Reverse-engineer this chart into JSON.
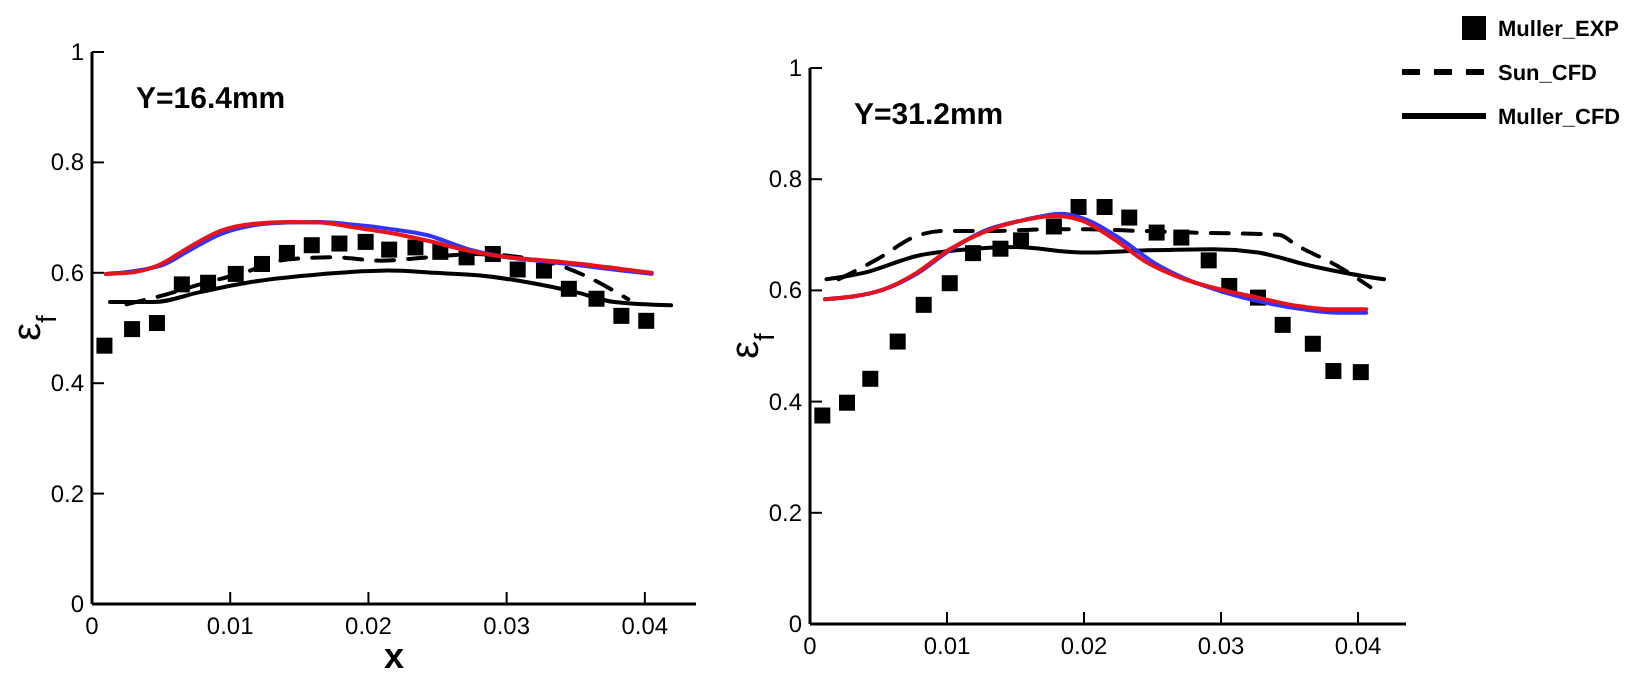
{
  "chart_data": [
    {
      "type": "line",
      "title": "Y=16.4mm",
      "xlabel": "x",
      "ylabel": "ε$_{f}$",
      "xlim": [
        0,
        0.0437
      ],
      "ylim": [
        0,
        1
      ],
      "xticks": [
        0,
        0.01,
        0.02,
        0.03,
        0.04
      ],
      "yticks": [
        0,
        0.2,
        0.4,
        0.6,
        0.8,
        1
      ],
      "grid": false,
      "legend": false,
      "series": [
        {
          "type": "scatter",
          "marker": "square",
          "color": "#000000",
          "x": [
            0.0009,
            0.0029,
            0.0047,
            0.0065,
            0.0084,
            0.0104,
            0.0123,
            0.0141,
            0.0159,
            0.0179,
            0.0198,
            0.0215,
            0.0234,
            0.0252,
            0.0271,
            0.029,
            0.0308,
            0.0327,
            0.0345,
            0.0365,
            0.0383,
            0.0401
          ],
          "values": [
            0.468,
            0.498,
            0.509,
            0.579,
            0.582,
            0.598,
            0.616,
            0.636,
            0.65,
            0.653,
            0.656,
            0.642,
            0.646,
            0.638,
            0.628,
            0.634,
            0.606,
            0.604,
            0.571,
            0.553,
            0.522,
            0.513
          ]
        },
        {
          "line_style": "dashed",
          "color": "#000000",
          "x": [
            0.0025,
            0.0054,
            0.0078,
            0.0107,
            0.0141,
            0.0175,
            0.0209,
            0.0243,
            0.0277,
            0.031,
            0.034,
            0.0359,
            0.0388
          ],
          "values": [
            0.543,
            0.561,
            0.579,
            0.598,
            0.624,
            0.628,
            0.622,
            0.628,
            0.634,
            0.628,
            0.612,
            0.592,
            0.552
          ]
        },
        {
          "line_style": "solid",
          "color": "#000000",
          "x": [
            0.0013,
            0.0045,
            0.0078,
            0.0112,
            0.0151,
            0.0185,
            0.0214,
            0.0248,
            0.0281,
            0.0315,
            0.035,
            0.0378,
            0.0419
          ],
          "values": [
            0.547,
            0.547,
            0.565,
            0.582,
            0.594,
            0.601,
            0.604,
            0.6,
            0.595,
            0.583,
            0.565,
            0.547,
            0.541
          ]
        },
        {
          "line_style": "solid",
          "color": "#3333ff",
          "x": [
            0.001,
            0.005,
            0.007,
            0.0093,
            0.0117,
            0.0141,
            0.0165,
            0.019,
            0.0214,
            0.0243,
            0.0272,
            0.0301,
            0.033,
            0.0354,
            0.0383,
            0.0405
          ],
          "values": [
            0.598,
            0.613,
            0.64,
            0.67,
            0.686,
            0.691,
            0.692,
            0.687,
            0.68,
            0.668,
            0.643,
            0.628,
            0.62,
            0.613,
            0.604,
            0.598
          ]
        },
        {
          "line_style": "solid",
          "color": "#e8141b",
          "x": [
            0.001,
            0.003,
            0.005,
            0.007,
            0.0093,
            0.0117,
            0.0141,
            0.0165,
            0.019,
            0.0214,
            0.0243,
            0.0272,
            0.0301,
            0.033,
            0.0354,
            0.0383,
            0.0405
          ],
          "values": [
            0.598,
            0.601,
            0.616,
            0.646,
            0.676,
            0.689,
            0.692,
            0.691,
            0.682,
            0.673,
            0.658,
            0.64,
            0.628,
            0.622,
            0.616,
            0.607,
            0.6
          ]
        }
      ]
    },
    {
      "type": "line",
      "title": "Y=31.2mm",
      "ylabel": "ε$_{f}$",
      "xlim": [
        0,
        0.0435
      ],
      "ylim": [
        0,
        1
      ],
      "xticks": [
        0,
        0.01,
        0.02,
        0.03,
        0.04
      ],
      "yticks": [
        0,
        0.2,
        0.4,
        0.6,
        0.8,
        1
      ],
      "grid": false,
      "legend": "right",
      "series": [
        {
          "name": "Muller_EXP",
          "type": "scatter",
          "marker": "square",
          "color": "#000000",
          "x": [
            0.0009,
            0.0027,
            0.0044,
            0.0064,
            0.0083,
            0.0102,
            0.0119,
            0.0139,
            0.0154,
            0.0178,
            0.0196,
            0.0215,
            0.0233,
            0.0253,
            0.0271,
            0.0291,
            0.0306,
            0.0327,
            0.0345,
            0.0367,
            0.0382,
            0.0402
          ],
          "values": [
            0.375,
            0.398,
            0.441,
            0.508,
            0.574,
            0.613,
            0.667,
            0.675,
            0.69,
            0.715,
            0.75,
            0.75,
            0.731,
            0.704,
            0.695,
            0.654,
            0.608,
            0.587,
            0.538,
            0.504,
            0.455,
            0.453
          ]
        },
        {
          "name": "Sun_CFD",
          "line_style": "dashed",
          "color": "#000000",
          "x": [
            0.0021,
            0.0049,
            0.0078,
            0.0097,
            0.0136,
            0.0174,
            0.0203,
            0.0241,
            0.0279,
            0.0342,
            0.0356,
            0.0385,
            0.0409
          ],
          "values": [
            0.62,
            0.656,
            0.698,
            0.707,
            0.707,
            0.71,
            0.71,
            0.707,
            0.704,
            0.7,
            0.68,
            0.644,
            0.606
          ]
        },
        {
          "name": "Muller_CFD",
          "line_style": "solid",
          "color": "#000000",
          "x": [
            0.0012,
            0.004,
            0.0078,
            0.0116,
            0.015,
            0.0198,
            0.0246,
            0.0294,
            0.0327,
            0.0366,
            0.0394,
            0.0419
          ],
          "values": [
            0.62,
            0.632,
            0.662,
            0.674,
            0.678,
            0.668,
            0.672,
            0.674,
            0.668,
            0.644,
            0.63,
            0.62
          ]
        },
        {
          "line_style": "solid",
          "color": "#3333ff",
          "x": [
            0.0011,
            0.0054,
            0.0078,
            0.0102,
            0.0126,
            0.0155,
            0.0184,
            0.0203,
            0.0227,
            0.0251,
            0.0275,
            0.0303,
            0.0332,
            0.036,
            0.0385,
            0.0406
          ],
          "values": [
            0.584,
            0.602,
            0.63,
            0.672,
            0.706,
            0.726,
            0.738,
            0.726,
            0.692,
            0.65,
            0.62,
            0.596,
            0.578,
            0.566,
            0.56,
            0.56
          ]
        },
        {
          "line_style": "solid",
          "color": "#e8141b",
          "x": [
            0.0011,
            0.0054,
            0.0078,
            0.0102,
            0.0126,
            0.0155,
            0.0179,
            0.0198,
            0.0222,
            0.0246,
            0.027,
            0.0299,
            0.0327,
            0.0356,
            0.038,
            0.0406
          ],
          "values": [
            0.584,
            0.602,
            0.632,
            0.674,
            0.704,
            0.726,
            0.734,
            0.726,
            0.692,
            0.65,
            0.623,
            0.602,
            0.587,
            0.572,
            0.566,
            0.566
          ]
        }
      ]
    }
  ]
}
